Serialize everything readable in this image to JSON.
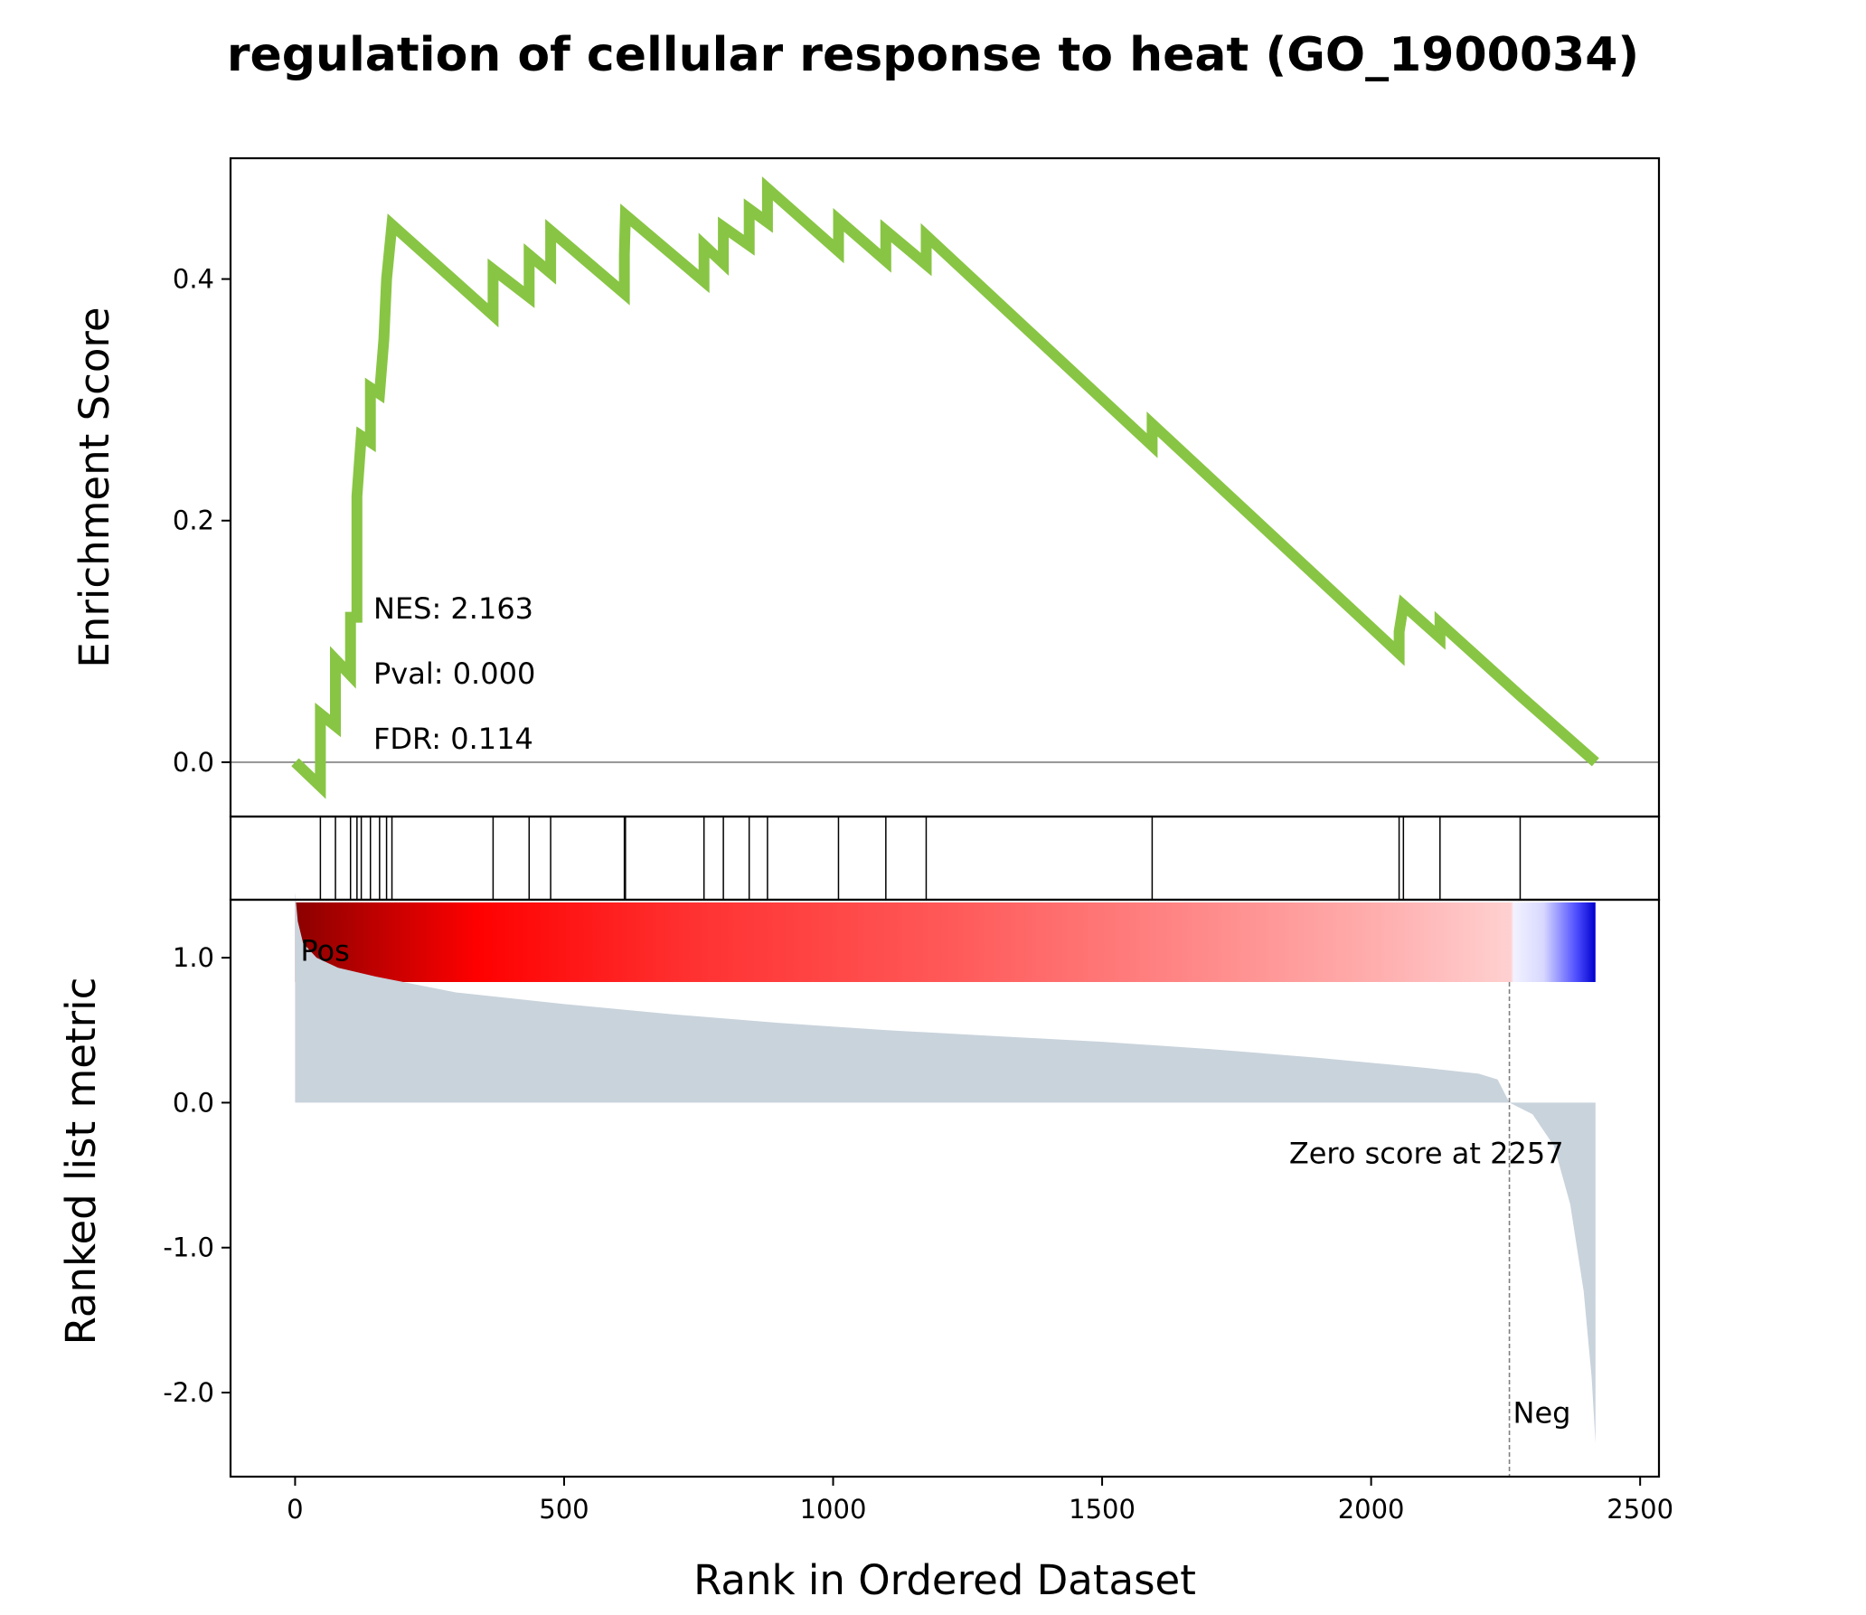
{
  "chart_data": {
    "type": "line",
    "title": "regulation of cellular response to heat (GO_1900034)",
    "xlabel": "Rank in Ordered Dataset",
    "xlim": [
      -120,
      2535
    ],
    "xticks": [
      "0",
      "500",
      "1000",
      "1500",
      "2000",
      "2500"
    ],
    "xtick_values": [
      0,
      500,
      1000,
      1500,
      2000,
      2500
    ],
    "enrichment": {
      "ylabel": "Enrichment Score",
      "ylim": [
        -0.045,
        0.5
      ],
      "yticks": [
        "0.0",
        "0.2",
        "0.4"
      ],
      "ytick_values": [
        0.0,
        0.2,
        0.4
      ],
      "line_color": "#88c544",
      "baseline": 0.0,
      "points": [
        [
          0,
          0.0
        ],
        [
          47,
          -0.02
        ],
        [
          47,
          0.04
        ],
        [
          75,
          0.03
        ],
        [
          75,
          0.085
        ],
        [
          103,
          0.072
        ],
        [
          103,
          0.12
        ],
        [
          115,
          0.12
        ],
        [
          115,
          0.22
        ],
        [
          123,
          0.27
        ],
        [
          140,
          0.265
        ],
        [
          140,
          0.31
        ],
        [
          157,
          0.305
        ],
        [
          165,
          0.35
        ],
        [
          170,
          0.4
        ],
        [
          180,
          0.445
        ],
        [
          368,
          0.37
        ],
        [
          368,
          0.408
        ],
        [
          435,
          0.385
        ],
        [
          435,
          0.42
        ],
        [
          475,
          0.405
        ],
        [
          475,
          0.44
        ],
        [
          612,
          0.388
        ],
        [
          612,
          0.42
        ],
        [
          614,
          0.453
        ],
        [
          760,
          0.398
        ],
        [
          760,
          0.428
        ],
        [
          796,
          0.413
        ],
        [
          796,
          0.443
        ],
        [
          844,
          0.428
        ],
        [
          844,
          0.458
        ],
        [
          878,
          0.447
        ],
        [
          878,
          0.475
        ],
        [
          1010,
          0.423
        ],
        [
          1010,
          0.449
        ],
        [
          1098,
          0.415
        ],
        [
          1098,
          0.44
        ],
        [
          1173,
          0.412
        ],
        [
          1173,
          0.436
        ],
        [
          1593,
          0.262
        ],
        [
          1593,
          0.28
        ],
        [
          2052,
          0.09
        ],
        [
          2052,
          0.108
        ],
        [
          2060,
          0.13
        ],
        [
          2128,
          0.103
        ],
        [
          2128,
          0.115
        ],
        [
          2277,
          0.055
        ],
        [
          2417,
          0.0
        ]
      ],
      "annotations": [
        "NES: 2.163",
        "Pval: 0.000",
        "FDR: 0.114"
      ]
    },
    "hits": [
      47,
      75,
      103,
      115,
      123,
      140,
      157,
      170,
      180,
      368,
      435,
      475,
      612,
      614,
      760,
      796,
      844,
      878,
      1010,
      1098,
      1173,
      1593,
      2052,
      2060,
      2128,
      2277
    ],
    "ranked_metric": {
      "ylabel": "Ranked list metric",
      "ylim": [
        -2.58,
        1.4
      ],
      "yticks": [
        "1.0",
        "0.0",
        "-1.0",
        "-2.0"
      ],
      "ytick_values": [
        1.0,
        0.0,
        -1.0,
        -2.0
      ],
      "fill_color": "#c9d3dc",
      "points": [
        [
          0,
          1.45
        ],
        [
          5,
          1.25
        ],
        [
          15,
          1.1
        ],
        [
          40,
          1.0
        ],
        [
          80,
          0.93
        ],
        [
          150,
          0.87
        ],
        [
          300,
          0.76
        ],
        [
          500,
          0.68
        ],
        [
          700,
          0.61
        ],
        [
          900,
          0.55
        ],
        [
          1100,
          0.5
        ],
        [
          1300,
          0.46
        ],
        [
          1500,
          0.42
        ],
        [
          1700,
          0.37
        ],
        [
          1900,
          0.31
        ],
        [
          2100,
          0.24
        ],
        [
          2200,
          0.2
        ],
        [
          2235,
          0.16
        ],
        [
          2257,
          0.0
        ],
        [
          2300,
          -0.08
        ],
        [
          2340,
          -0.3
        ],
        [
          2370,
          -0.7
        ],
        [
          2395,
          -1.3
        ],
        [
          2410,
          -1.9
        ],
        [
          2417,
          -2.35
        ]
      ],
      "zero_score_rank": 2257,
      "zero_score_label": "Zero score at 2257",
      "pos_label": "Pos",
      "neg_label": "Neg",
      "pos_color": "#ff0000",
      "neg_color": "#0000ff"
    },
    "colorbar": {
      "stops": [
        [
          "0",
          "#8b0000"
        ],
        [
          "0.14",
          "#ff0000"
        ],
        [
          "0.3",
          "#ff3030"
        ],
        [
          "0.5",
          "#ff5858"
        ],
        [
          "0.7",
          "#ff8a8a"
        ],
        [
          "0.84",
          "#ffb0b0"
        ],
        [
          "0.935",
          "#ffd0d0"
        ],
        [
          "0.937",
          "#f2f2ff"
        ],
        [
          "0.96",
          "#d8d8ff"
        ],
        [
          "0.985",
          "#5050ff"
        ],
        [
          "1",
          "#0000cd"
        ]
      ]
    }
  }
}
